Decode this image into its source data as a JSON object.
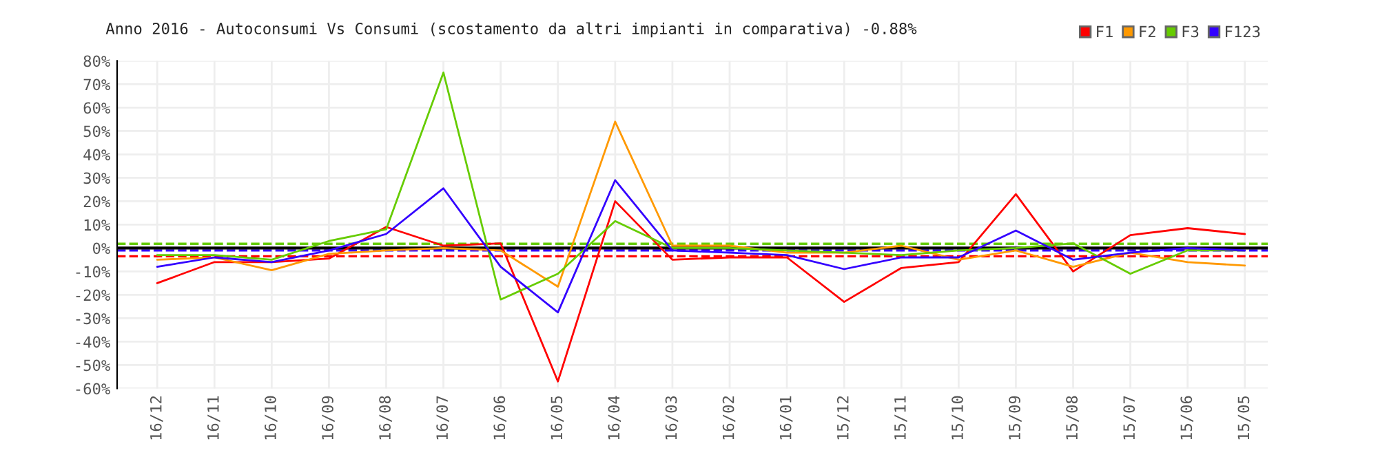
{
  "chart_data": {
    "type": "line",
    "title": "Anno 2016 - Autoconsumi Vs Consumi (scostamento da altri impianti in comparativa) -0.88%",
    "categories": [
      "16/12",
      "16/11",
      "16/10",
      "16/09",
      "16/08",
      "16/07",
      "16/06",
      "16/05",
      "16/04",
      "16/03",
      "16/02",
      "16/01",
      "15/12",
      "15/11",
      "15/10",
      "15/09",
      "15/08",
      "15/07",
      "15/06",
      "15/05"
    ],
    "series": [
      {
        "name": "F1",
        "color": "#ff0000",
        "values": [
          -15,
          -6,
          -6,
          -4.5,
          9,
          1,
          2,
          -57,
          20,
          -5,
          -4,
          -4,
          -23,
          -8.5,
          -6,
          23,
          -10,
          5.5,
          8.5,
          6
        ]
      },
      {
        "name": "F2",
        "color": "#ff9900",
        "values": [
          -5,
          -4,
          -9.5,
          -2.5,
          -1,
          0,
          -1,
          -16.5,
          54,
          1,
          1,
          -2,
          -2,
          1,
          -5,
          -1,
          -8,
          -2,
          -6,
          -7.5
        ]
      },
      {
        "name": "F3",
        "color": "#66cc00",
        "values": [
          -3,
          -3,
          -5,
          3,
          8,
          75,
          -22,
          -11,
          11.5,
          0,
          0,
          -1,
          -2,
          -3,
          -1,
          0,
          2,
          -11,
          -1,
          -1
        ]
      },
      {
        "name": "F123",
        "color": "#3300ff",
        "values": [
          -8,
          -4,
          -6,
          -1,
          6,
          25.5,
          -8,
          -27.5,
          29,
          -1,
          -2,
          -3,
          -9,
          -4,
          -4,
          7.5,
          -5,
          -2,
          0,
          -1
        ]
      }
    ],
    "ylim": [
      -60,
      80
    ],
    "yticks": [
      {
        "value": -60,
        "label": "-60%"
      },
      {
        "value": -50,
        "label": "-50%"
      },
      {
        "value": -40,
        "label": "-40%"
      },
      {
        "value": -30,
        "label": "-30%"
      },
      {
        "value": -20,
        "label": "-20%"
      },
      {
        "value": -10,
        "label": "-10%"
      },
      {
        "value": 0,
        "label": "0%"
      },
      {
        "value": 10,
        "label": "10%"
      },
      {
        "value": 20,
        "label": "20%"
      },
      {
        "value": 30,
        "label": "30%"
      },
      {
        "value": 40,
        "label": "40%"
      },
      {
        "value": 50,
        "label": "50%"
      },
      {
        "value": 60,
        "label": "60%"
      },
      {
        "value": 70,
        "label": "70%"
      },
      {
        "value": 80,
        "label": "80%"
      }
    ],
    "ref_lines": [
      {
        "axis": "y",
        "value": 1.8,
        "color": "#66cc00",
        "line_style": "dashed"
      },
      {
        "axis": "y",
        "value": -3.5,
        "color": "#ff0000",
        "line_style": "dashed"
      },
      {
        "axis": "y",
        "value": -1,
        "color": "#3300ff",
        "line_style": "dashed"
      },
      {
        "axis": "y",
        "value": 0,
        "color": "#000000",
        "line_style": "solid"
      }
    ],
    "grid": true,
    "legend": "top right",
    "marker": "none",
    "line_style": "solid"
  }
}
